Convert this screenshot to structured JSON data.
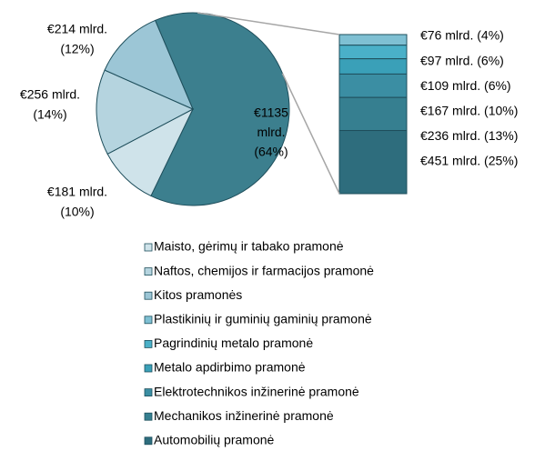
{
  "chart_data": {
    "type": "pie",
    "categories": [
      null,
      "Maisto, gėrimų ir tabako pramonė",
      "Naftos, chemijos ir farmacijos pramonė",
      "Kitos pramonės"
    ],
    "values": [
      1135,
      181,
      256,
      214
    ],
    "colors": [
      "#3c7f8e",
      "#cfe3ea",
      "#b5d4df",
      "#9cc6d6"
    ],
    "value_labels": [
      [
        "€1135",
        "mlrd.",
        "(64%)"
      ],
      [
        "€181 mlrd.",
        "(10%)"
      ],
      [
        "€256 mlrd.",
        "(14%)"
      ],
      [
        "€214 mlrd.",
        "(12%)"
      ]
    ],
    "bar": {
      "categories": [
        "Plastikinių ir guminių gaminių pramonė",
        "Pagrindinių metalo pramonė",
        "Metalo apdirbimo pramonė",
        "Elektrotechnikos inžinerinė pramonė",
        "Mechanikos inžinerinė pramonė",
        "Automobilių pramonė"
      ],
      "values": [
        76,
        97,
        109,
        167,
        236,
        451
      ],
      "colors": [
        "#7fc0d3",
        "#4ab0c8",
        "#3aa0b8",
        "#3b8ea3",
        "#367f90",
        "#2e6d7d"
      ],
      "value_labels": [
        "€76 mlrd. (4%)",
        "€97 mlrd. (6%)",
        "€109 mlrd. (6%)",
        "€167 mlrd. (10%)",
        "€236 mlrd. (13%)",
        "€451 mlrd. (25%)"
      ]
    }
  }
}
